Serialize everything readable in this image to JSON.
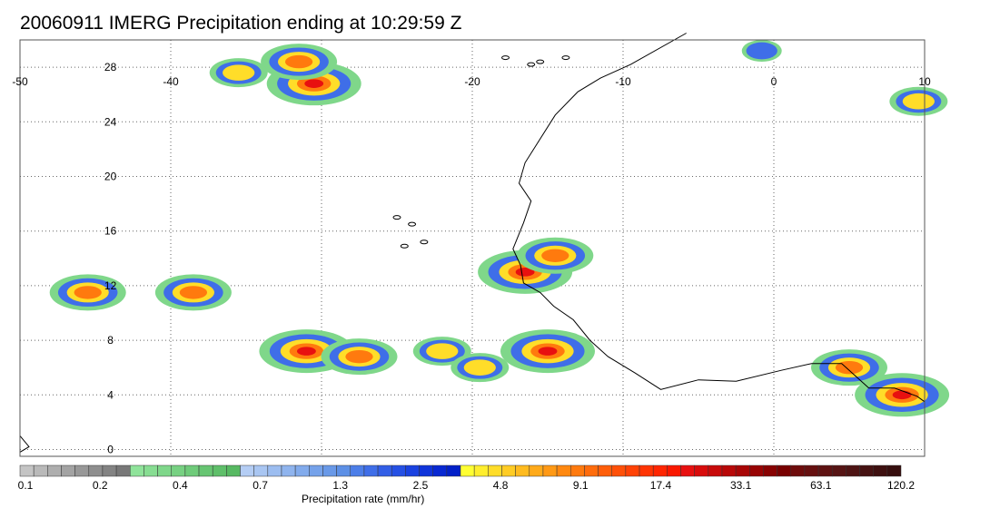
{
  "title": "20060911 IMERG Precipitation ending at 10:29:59 Z",
  "map": {
    "lon_range": [
      -50,
      10
    ],
    "lat_range": [
      -0.5,
      30
    ],
    "lon_ticks": [
      -50,
      -40,
      -20,
      -10,
      0,
      10
    ],
    "lon_tick_labels": [
      "-50",
      "-40",
      "-20",
      "-10",
      "0",
      "10"
    ],
    "lat_ticks": [
      0,
      4,
      8,
      12,
      16,
      20,
      24,
      28
    ],
    "lat_tick_labels": [
      "0",
      "4",
      "8",
      "12",
      "16",
      "20",
      "24",
      "28"
    ],
    "grid_lons": [
      -50,
      -40,
      -30,
      -20,
      -10,
      0,
      10
    ],
    "grid_lats": [
      0,
      4,
      8,
      12,
      16,
      20,
      24,
      28
    ],
    "grid": "dotted",
    "coastline_color": "#000000"
  },
  "colorbar": {
    "label": "Precipitation rate (mm/hr)",
    "colors": [
      "#c4c4c4",
      "#b9b9b9",
      "#aeaeae",
      "#a3a3a3",
      "#989898",
      "#8e8e8e",
      "#838383",
      "#787878",
      "#8fe39a",
      "#87dd92",
      "#7fd78a",
      "#77d182",
      "#6fcb7a",
      "#67c572",
      "#5fbf6a",
      "#57b962",
      "#b4cdf4",
      "#a9c6f2",
      "#9cbdf0",
      "#8fb4ee",
      "#82abec",
      "#75a2ea",
      "#6999e8",
      "#5d90e6",
      "#4c7ee8",
      "#3f6ee8",
      "#325ee6",
      "#2550e4",
      "#1a42e0",
      "#1034da",
      "#0828d2",
      "#0220c8",
      "#ffff33",
      "#ffee2e",
      "#ffdd29",
      "#ffcc24",
      "#ffbb1f",
      "#ffaa1a",
      "#ff9915",
      "#ff8810",
      "#ff7a0e",
      "#ff6c0c",
      "#ff5e0a",
      "#ff5008",
      "#ff4206",
      "#ff3404",
      "#ff2602",
      "#fa1800",
      "#e81010",
      "#d80c0c",
      "#c80a0a",
      "#b80808",
      "#a80606",
      "#980404",
      "#880202",
      "#780000",
      "#6e0c0c",
      "#661010",
      "#5e1212",
      "#561414",
      "#4e1414",
      "#461212",
      "#3e1010",
      "#360e0e"
    ],
    "tick_labels": [
      "0.1",
      "0.2",
      "0.4",
      "0.7",
      "1.3",
      "2.5",
      "4.8",
      "9.1",
      "17.4",
      "33.1",
      "63.1",
      "120.2"
    ]
  },
  "precip_cells": [
    {
      "lon": -45.5,
      "lat": 11.5,
      "level": 2
    },
    {
      "lon": -38.5,
      "lat": 11.5,
      "level": 2
    },
    {
      "lon": -31,
      "lat": 7.2,
      "level": 3
    },
    {
      "lon": -27.5,
      "lat": 6.8,
      "level": 2
    },
    {
      "lon": -22,
      "lat": 7.2,
      "level": 1
    },
    {
      "lon": -19.5,
      "lat": 6.0,
      "level": 1
    },
    {
      "lon": -15,
      "lat": 7.2,
      "level": 3
    },
    {
      "lon": -16.5,
      "lat": 13.0,
      "level": 3
    },
    {
      "lon": -14.5,
      "lat": 14.2,
      "level": 2
    },
    {
      "lon": -30.5,
      "lat": 26.8,
      "level": 3
    },
    {
      "lon": -31.5,
      "lat": 28.4,
      "level": 2
    },
    {
      "lon": -35.5,
      "lat": 27.6,
      "level": 1
    },
    {
      "lon": 5,
      "lat": 6.0,
      "level": 2
    },
    {
      "lon": 8.5,
      "lat": 4.0,
      "level": 3
    },
    {
      "lon": 9.6,
      "lat": 25.5,
      "level": 1
    },
    {
      "lon": -0.8,
      "lat": 29.2,
      "level": 0
    }
  ]
}
